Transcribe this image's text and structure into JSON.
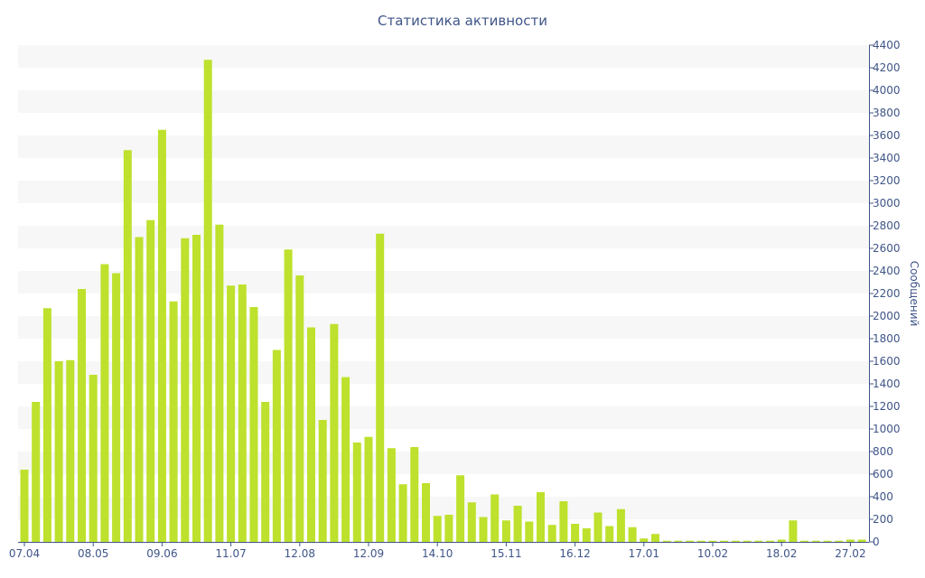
{
  "chart_data": {
    "type": "bar",
    "title": "Статистика активности",
    "xlabel": "",
    "ylabel": "Сообщений",
    "ylim": [
      0,
      4400
    ],
    "y_ticks": [
      0,
      200,
      400,
      600,
      800,
      1000,
      1200,
      1400,
      1600,
      1800,
      2000,
      2200,
      2400,
      2600,
      2800,
      3000,
      3200,
      3400,
      3600,
      3800,
      4000,
      4200,
      4400
    ],
    "y_axis_position": "right",
    "x_tick_labels": [
      {
        "label": "07.04",
        "index": 0
      },
      {
        "label": "08.05",
        "index": 6
      },
      {
        "label": "09.06",
        "index": 12
      },
      {
        "label": "11.07",
        "index": 18
      },
      {
        "label": "12.08",
        "index": 24
      },
      {
        "label": "12.09",
        "index": 30
      },
      {
        "label": "14.10",
        "index": 36
      },
      {
        "label": "15.11",
        "index": 42
      },
      {
        "label": "16.12",
        "index": 48
      },
      {
        "label": "17.01",
        "index": 54
      },
      {
        "label": "10.02",
        "index": 60
      },
      {
        "label": "18.02",
        "index": 66
      },
      {
        "label": "27.02",
        "index": 72
      }
    ],
    "grid": "alternating horizontal bands",
    "bar_color": "#bde12c",
    "text_color": "#3f5588",
    "band_color": "#f7f7f7",
    "values": [
      640,
      1240,
      2070,
      1600,
      1610,
      2240,
      1480,
      2460,
      2380,
      3470,
      2700,
      2850,
      3650,
      2130,
      2690,
      2720,
      4270,
      2810,
      2270,
      2280,
      2080,
      1240,
      1700,
      2590,
      2360,
      1900,
      1080,
      1930,
      1460,
      880,
      930,
      2730,
      830,
      510,
      840,
      520,
      230,
      240,
      590,
      350,
      220,
      420,
      190,
      320,
      180,
      440,
      150,
      360,
      160,
      120,
      260,
      140,
      290,
      130,
      30,
      70,
      10,
      10,
      10,
      10,
      10,
      10,
      10,
      10,
      10,
      10,
      20,
      190,
      10,
      10,
      10,
      10,
      20,
      20
    ]
  }
}
